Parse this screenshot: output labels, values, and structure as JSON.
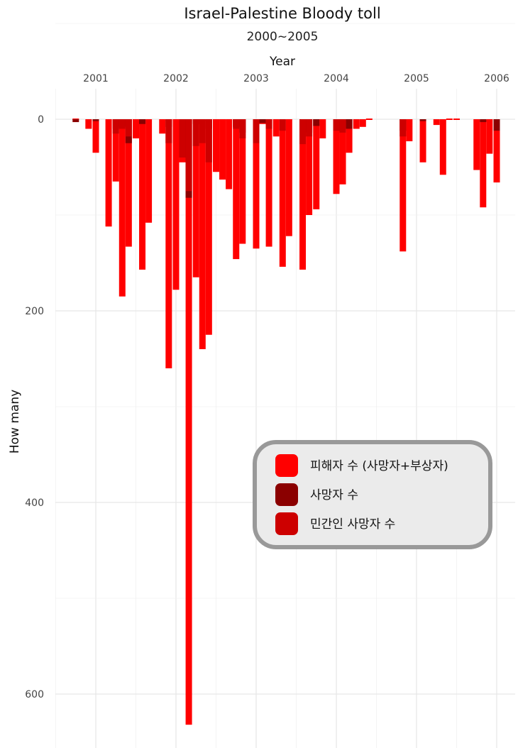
{
  "chart_data": {
    "type": "bar",
    "title": "Israel-Palestine Bloody toll",
    "subtitle": "2000~2005",
    "xlabel": "Year",
    "ylabel": "How many",
    "x_ticks": [
      "2001",
      "2002",
      "2003",
      "2004",
      "2005",
      "2006"
    ],
    "y_ticks": [
      "0",
      "200",
      "400",
      "600"
    ],
    "ylim": [
      0,
      650
    ],
    "y_reversed": true,
    "grid": true,
    "legend_position": "right",
    "colors": {
      "casualties": "#ff0000",
      "deaths": "#8b0000",
      "civilian_deaths": "#cd0000"
    },
    "x_unit": "year",
    "series": [
      {
        "name": "피해자 수 (사망자+부상자)",
        "x": [
          2000.75,
          2000.91,
          2001.0,
          2001.16,
          2001.25,
          2001.33,
          2001.41,
          2001.5,
          2001.58,
          2001.66,
          2001.83,
          2001.91,
          2002.0,
          2002.08,
          2002.16,
          2002.25,
          2002.33,
          2002.41,
          2002.5,
          2002.58,
          2002.66,
          2002.75,
          2002.83,
          2003.0,
          2003.08,
          2003.16,
          2003.25,
          2003.33,
          2003.41,
          2003.58,
          2003.66,
          2003.75,
          2003.83,
          2004.0,
          2004.08,
          2004.16,
          2004.25,
          2004.33,
          2004.41,
          2004.83,
          2004.91,
          2005.08,
          2005.25,
          2005.33,
          2005.41,
          2005.5,
          2005.75,
          2005.83,
          2005.91,
          2006.0
        ],
        "values": [
          0,
          10,
          35,
          112,
          65,
          185,
          133,
          20,
          157,
          108,
          15,
          260,
          178,
          45,
          632,
          165,
          240,
          225,
          55,
          63,
          73,
          146,
          130,
          135,
          5,
          133,
          18,
          154,
          122,
          157,
          100,
          94,
          20,
          78,
          68,
          35,
          10,
          8,
          0,
          138,
          23,
          45,
          6,
          58,
          0,
          0,
          53,
          92,
          36,
          66
        ]
      },
      {
        "name": "사망자 수",
        "x": [
          2000.75,
          2001.0,
          2001.25,
          2001.33,
          2001.41,
          2001.58,
          2001.91,
          2002.16,
          2002.25,
          2002.41,
          2002.75,
          2002.83,
          2003.08,
          2003.58,
          2003.66,
          2003.75,
          2004.08,
          2004.16,
          2004.83,
          2005.08,
          2005.83,
          2006.0
        ],
        "values": [
          3,
          2,
          10,
          8,
          25,
          5,
          8,
          82,
          5,
          10,
          8,
          14,
          4,
          18,
          14,
          7,
          12,
          10,
          12,
          2,
          3,
          12
        ]
      },
      {
        "name": "민간인 사망자 수",
        "x": [
          2001.25,
          2001.33,
          2001.41,
          2001.91,
          2002.08,
          2002.16,
          2002.25,
          2002.33,
          2002.41,
          2002.75,
          2002.83,
          2003.0,
          2003.16,
          2003.33,
          2003.58,
          2003.66,
          2004.0,
          2004.08,
          2004.83
        ],
        "values": [
          15,
          10,
          18,
          25,
          40,
          75,
          28,
          25,
          45,
          10,
          20,
          25,
          10,
          12,
          26,
          18,
          12,
          14,
          18
        ]
      }
    ]
  }
}
